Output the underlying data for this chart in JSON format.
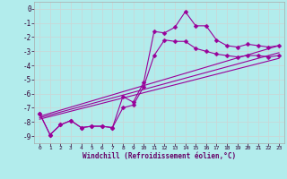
{
  "xlabel": "Windchill (Refroidissement éolien,°C)",
  "bg_color": "#b2ecec",
  "grid_color": "#c8d8d8",
  "line_color": "#990099",
  "xlim": [
    -0.5,
    23.5
  ],
  "ylim": [
    -9.5,
    0.5
  ],
  "xticks": [
    0,
    1,
    2,
    3,
    4,
    5,
    6,
    7,
    8,
    9,
    10,
    11,
    12,
    13,
    14,
    15,
    16,
    17,
    18,
    19,
    20,
    21,
    22,
    23
  ],
  "yticks": [
    0,
    -1,
    -2,
    -3,
    -4,
    -5,
    -6,
    -7,
    -8,
    -9
  ],
  "series1_x": [
    0,
    1,
    2,
    3,
    4,
    5,
    6,
    7,
    8,
    9,
    10,
    11,
    12,
    13,
    14,
    15,
    16,
    17,
    18,
    19,
    20,
    21,
    22,
    23
  ],
  "series1_y": [
    -7.4,
    -8.9,
    -8.2,
    -7.9,
    -8.4,
    -8.3,
    -8.3,
    -8.4,
    -6.2,
    -6.6,
    -5.2,
    -1.6,
    -1.7,
    -1.3,
    -0.2,
    -1.2,
    -1.2,
    -2.2,
    -2.6,
    -2.7,
    -2.5,
    -2.6,
    -2.7,
    -2.6
  ],
  "series2_x": [
    0,
    1,
    2,
    3,
    4,
    5,
    6,
    7,
    8,
    9,
    10,
    11,
    12,
    13,
    14,
    15,
    16,
    17,
    18,
    19,
    20,
    21,
    22,
    23
  ],
  "series2_y": [
    -7.4,
    -8.9,
    -8.2,
    -7.9,
    -8.4,
    -8.3,
    -8.3,
    -8.4,
    -7.0,
    -6.8,
    -5.5,
    -3.3,
    -2.2,
    -2.3,
    -2.3,
    -2.8,
    -3.0,
    -3.2,
    -3.3,
    -3.4,
    -3.3,
    -3.3,
    -3.4,
    -3.3
  ],
  "line3_x": [
    0,
    23
  ],
  "line3_y": [
    -7.6,
    -2.6
  ],
  "line4_x": [
    0,
    23
  ],
  "line4_y": [
    -7.7,
    -3.1
  ],
  "line5_x": [
    0,
    23
  ],
  "line5_y": [
    -7.8,
    -3.5
  ]
}
